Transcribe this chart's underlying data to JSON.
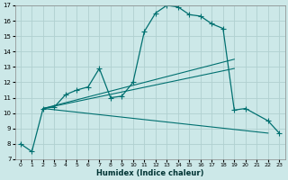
{
  "xlabel": "Humidex (Indice chaleur)",
  "xlim": [
    -0.5,
    23.5
  ],
  "ylim": [
    7,
    17
  ],
  "yticks": [
    7,
    8,
    9,
    10,
    11,
    12,
    13,
    14,
    15,
    16,
    17
  ],
  "xticks": [
    0,
    1,
    2,
    3,
    4,
    5,
    6,
    7,
    8,
    9,
    10,
    11,
    12,
    13,
    14,
    15,
    16,
    17,
    18,
    19,
    20,
    21,
    22,
    23
  ],
  "bg_color": "#cce8e8",
  "grid_color": "#b0d0d0",
  "line_color": "#007070",
  "line1": {
    "x": [
      0,
      1,
      2,
      3,
      4,
      5,
      6,
      7,
      8,
      9,
      10,
      11,
      12,
      13,
      14,
      15,
      16,
      17,
      18,
      19,
      20,
      22,
      23
    ],
    "y": [
      8.0,
      7.5,
      10.3,
      10.4,
      11.2,
      11.5,
      11.7,
      12.9,
      11.0,
      11.1,
      12.0,
      15.3,
      16.5,
      17.0,
      16.9,
      16.4,
      16.3,
      15.8,
      15.5,
      10.2,
      10.3,
      9.5,
      8.7
    ]
  },
  "line2_x": [
    2,
    19
  ],
  "line2_y": [
    10.3,
    13.5
  ],
  "line3_x": [
    2,
    19
  ],
  "line3_y": [
    10.3,
    12.9
  ],
  "line4_x": [
    2,
    22
  ],
  "line4_y": [
    10.3,
    8.7
  ]
}
